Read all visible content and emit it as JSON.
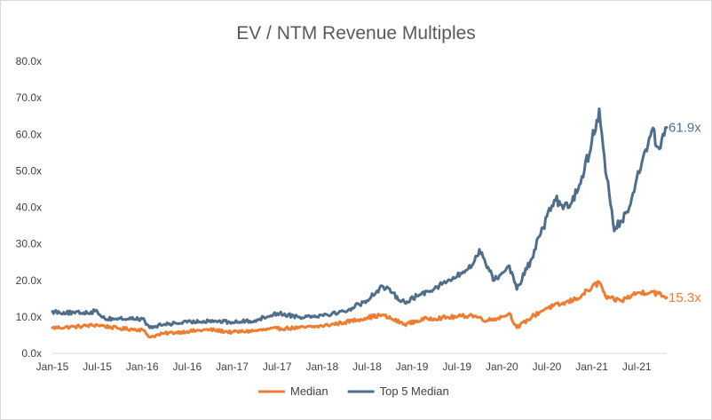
{
  "chart_data": {
    "type": "line",
    "title": "EV / NTM Revenue Multiples",
    "xlabel": "",
    "ylabel": "",
    "x_ticks": [
      "Jan-15",
      "Jul-15",
      "Jan-16",
      "Jul-16",
      "Jan-17",
      "Jul-17",
      "Jan-18",
      "Jul-18",
      "Jan-19",
      "Jul-19",
      "Jan-20",
      "Jul-20",
      "Jan-21",
      "Jul-21"
    ],
    "y_ticks": [
      "0.0x",
      "10.0x",
      "20.0x",
      "30.0x",
      "40.0x",
      "50.0x",
      "60.0x",
      "70.0x",
      "80.0x"
    ],
    "ylim": [
      0,
      80
    ],
    "xlim": [
      "2015-01",
      "2021-11"
    ],
    "grid": false,
    "legend_position": "bottom",
    "series": [
      {
        "name": "Median",
        "color": "#ED7D31",
        "end_label": "15.3x",
        "points": [
          [
            "2015-01",
            7.0
          ],
          [
            "2015-04",
            7.3
          ],
          [
            "2015-07",
            7.8
          ],
          [
            "2015-10",
            6.8
          ],
          [
            "2016-01",
            6.5
          ],
          [
            "2016-02",
            4.5
          ],
          [
            "2016-04",
            5.5
          ],
          [
            "2016-07",
            6.0
          ],
          [
            "2016-10",
            6.5
          ],
          [
            "2017-01",
            5.8
          ],
          [
            "2017-04",
            6.2
          ],
          [
            "2017-07",
            6.8
          ],
          [
            "2017-10",
            7.0
          ],
          [
            "2018-01",
            7.5
          ],
          [
            "2018-04",
            8.5
          ],
          [
            "2018-07",
            9.8
          ],
          [
            "2018-09",
            10.5
          ],
          [
            "2018-12",
            8.0
          ],
          [
            "2019-03",
            9.5
          ],
          [
            "2019-07",
            10.0
          ],
          [
            "2019-09",
            10.5
          ],
          [
            "2019-11",
            9.0
          ],
          [
            "2020-01",
            10.0
          ],
          [
            "2020-02",
            11.0
          ],
          [
            "2020-03",
            7.0
          ],
          [
            "2020-05",
            10.0
          ],
          [
            "2020-07",
            12.5
          ],
          [
            "2020-09",
            13.5
          ],
          [
            "2020-11",
            15.0
          ],
          [
            "2021-01",
            18.0
          ],
          [
            "2021-02",
            19.5
          ],
          [
            "2021-03",
            15.0
          ],
          [
            "2021-05",
            14.5
          ],
          [
            "2021-07",
            16.5
          ],
          [
            "2021-09",
            17.0
          ],
          [
            "2021-11",
            15.3
          ]
        ]
      },
      {
        "name": "Top 5 Median",
        "color": "#4F6E8C",
        "end_label": "61.9x",
        "points": [
          [
            "2015-01",
            11.5
          ],
          [
            "2015-04",
            11.0
          ],
          [
            "2015-07",
            11.5
          ],
          [
            "2015-08",
            9.5
          ],
          [
            "2015-10",
            9.5
          ],
          [
            "2016-01",
            9.5
          ],
          [
            "2016-02",
            7.0
          ],
          [
            "2016-04",
            8.0
          ],
          [
            "2016-07",
            8.5
          ],
          [
            "2016-10",
            9.0
          ],
          [
            "2017-01",
            8.5
          ],
          [
            "2017-04",
            9.0
          ],
          [
            "2017-07",
            11.0
          ],
          [
            "2017-10",
            10.0
          ],
          [
            "2018-01",
            10.5
          ],
          [
            "2018-04",
            11.5
          ],
          [
            "2018-07",
            14.5
          ],
          [
            "2018-09",
            18.5
          ],
          [
            "2018-12",
            14.0
          ],
          [
            "2019-03",
            17.0
          ],
          [
            "2019-07",
            21.0
          ],
          [
            "2019-09",
            24.0
          ],
          [
            "2019-10",
            28.5
          ],
          [
            "2019-12",
            20.0
          ],
          [
            "2020-02",
            24.0
          ],
          [
            "2020-03",
            17.5
          ],
          [
            "2020-05",
            26.0
          ],
          [
            "2020-06",
            32.0
          ],
          [
            "2020-08",
            42.0
          ],
          [
            "2020-10",
            40.0
          ],
          [
            "2020-12",
            50.0
          ],
          [
            "2021-01",
            58.0
          ],
          [
            "2021-02",
            67.0
          ],
          [
            "2021-03",
            48.0
          ],
          [
            "2021-04",
            33.5
          ],
          [
            "2021-06",
            40.0
          ],
          [
            "2021-08",
            55.0
          ],
          [
            "2021-09",
            61.0
          ],
          [
            "2021-10",
            56.0
          ],
          [
            "2021-11",
            61.9
          ]
        ]
      }
    ]
  }
}
